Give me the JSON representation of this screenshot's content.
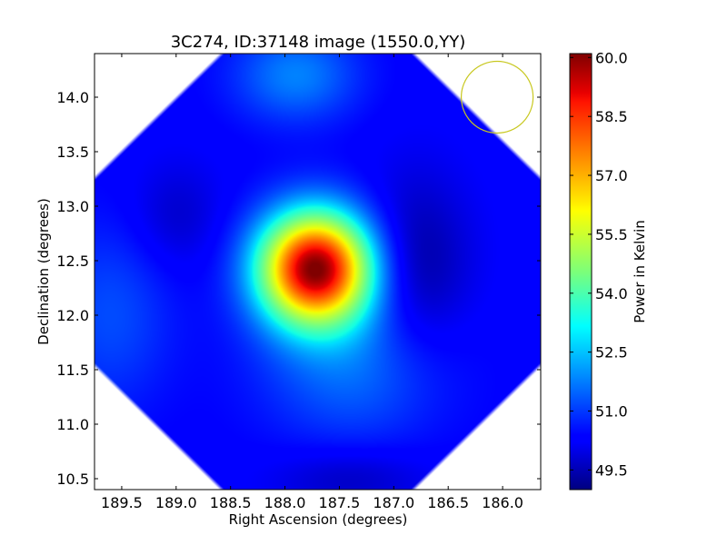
{
  "chart_data": {
    "type": "heatmap",
    "title": "3C274, ID:37148 image (1550.0,YY)",
    "xlabel": "Right Ascension (degrees)",
    "ylabel": "Declination (degrees)",
    "colorbar_label": "Power in Kelvin",
    "x_axis_direction": "decreasing-left-to-right",
    "xlim": [
      189.75,
      185.65
    ],
    "ylim": [
      10.4,
      14.4
    ],
    "x_ticks": [
      "189.5",
      "189.0",
      "188.5",
      "188.0",
      "187.5",
      "187.0",
      "186.5",
      "186.0"
    ],
    "y_ticks": [
      "10.5",
      "11.0",
      "11.5",
      "12.0",
      "12.5",
      "13.0",
      "13.5",
      "14.0"
    ],
    "colorbar_range": [
      49.0,
      60.1
    ],
    "colorbar_ticks": [
      "49.5",
      "51.0",
      "52.5",
      "54.0",
      "55.5",
      "57.0",
      "58.5",
      "60.0"
    ],
    "colormap": "jet",
    "background_level": 50.3,
    "sources": [
      {
        "ra": 187.72,
        "dec": 12.43,
        "peak": 60.0,
        "sigma_ra": 0.36,
        "sigma_dec": 0.36
      },
      {
        "ra": 187.35,
        "dec": 11.55,
        "peak": 51.6,
        "sigma_ra": 0.6,
        "sigma_dec": 0.5
      },
      {
        "ra": 187.9,
        "dec": 14.2,
        "peak": 51.8,
        "sigma_ra": 0.4,
        "sigma_dec": 0.3
      },
      {
        "ra": 189.6,
        "dec": 12.0,
        "peak": 51.2,
        "sigma_ra": 0.4,
        "sigma_dec": 0.6
      }
    ],
    "depressions": [
      {
        "ra": 186.8,
        "dec": 12.4,
        "depth": 1.1,
        "sigma_ra": 0.35,
        "sigma_dec": 0.6
      },
      {
        "ra": 189.0,
        "dec": 12.9,
        "depth": 0.6,
        "sigma_ra": 0.3,
        "sigma_dec": 0.35
      },
      {
        "ra": 187.4,
        "dec": 10.5,
        "depth": 0.7,
        "sigma_ra": 0.5,
        "sigma_dec": 0.2
      }
    ],
    "beam_marker": {
      "ra": 186.05,
      "dec": 14.0,
      "radius_deg": 0.33,
      "color": "#c8c820"
    },
    "grid": false
  }
}
